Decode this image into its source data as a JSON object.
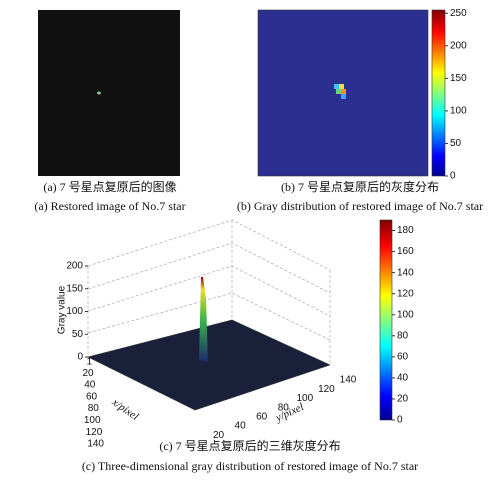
{
  "panel_a": {
    "caption_cn": "(a) 7 号星点复原后的图像",
    "caption_en": "(a) Restored image of No.7 star"
  },
  "panel_b": {
    "caption_cn": "(b) 7 号星点复原后的灰度分布",
    "caption_en": "(b) Gray distribution of restored  image of No.7 star",
    "colorbar_lim": [
      0,
      255
    ],
    "colorbar_ticks": [
      0,
      50,
      100,
      150,
      200,
      250
    ]
  },
  "panel_c": {
    "caption_cn": "(c) 7 号星点复原后的三维灰度分布",
    "caption_en": "(c) Three-dimensional gray distribution of restored image of No.7 star",
    "zlabel": "Gray value",
    "xlabel": "x/pixel",
    "ylabel": "y/pixel",
    "zlim": [
      0,
      200
    ],
    "zticks": [
      0,
      50,
      100,
      150,
      200
    ],
    "xlim": [
      1,
      140
    ],
    "xticks": [
      1,
      20,
      40,
      60,
      80,
      100,
      120,
      140
    ],
    "ylim": [
      1,
      140
    ],
    "yticks": [
      20,
      40,
      60,
      80,
      100,
      120,
      140
    ],
    "colorbar_lim": [
      0,
      190
    ],
    "colorbar_ticks": [
      0,
      20,
      40,
      60,
      80,
      100,
      120,
      140,
      160,
      180
    ]
  }
}
